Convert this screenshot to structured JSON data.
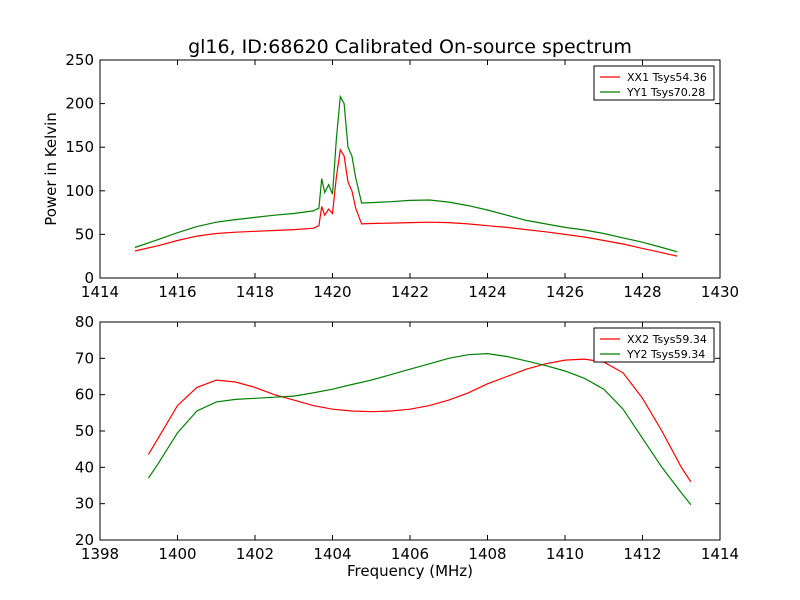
{
  "title": "gl16, ID:68620 Calibrated On-source spectrum",
  "chart_data": [
    {
      "type": "line",
      "title": "",
      "xlabel": "",
      "ylabel": "Power in Kelvin",
      "xlim": [
        1414,
        1430
      ],
      "ylim": [
        0,
        250
      ],
      "xticks": [
        "1414",
        "1416",
        "1418",
        "1420",
        "1422",
        "1424",
        "1426",
        "1428",
        "1430"
      ],
      "yticks": [
        "0",
        "50",
        "100",
        "150",
        "200",
        "250"
      ],
      "grid": false,
      "legend_position": "top-right",
      "series": [
        {
          "name": "XX1 Tsys54.36",
          "color": "#ff0000",
          "x": [
            1414.9,
            1415.5,
            1416.0,
            1416.5,
            1417.0,
            1417.5,
            1418.0,
            1418.5,
            1419.0,
            1419.5,
            1419.65,
            1419.72,
            1419.8,
            1419.9,
            1420.0,
            1420.1,
            1420.2,
            1420.3,
            1420.4,
            1420.5,
            1420.6,
            1420.75,
            1421.0,
            1421.5,
            1422.0,
            1422.5,
            1423.0,
            1423.5,
            1424.0,
            1424.5,
            1425.0,
            1425.5,
            1426.0,
            1426.5,
            1427.0,
            1427.5,
            1428.0,
            1428.5,
            1428.9
          ],
          "values": [
            31,
            37,
            43,
            48,
            51,
            52.5,
            53.5,
            54.5,
            55.5,
            57,
            60,
            82,
            72,
            79,
            74,
            116,
            147,
            140,
            110,
            100,
            80,
            62,
            62.5,
            63,
            63.5,
            64,
            63.5,
            62,
            60,
            58,
            55.5,
            53,
            50,
            47,
            43,
            39,
            34,
            29,
            25
          ]
        },
        {
          "name": "YY1 Tsys70.28",
          "color": "#008000",
          "x": [
            1414.9,
            1415.5,
            1416.0,
            1416.5,
            1417.0,
            1417.5,
            1418.0,
            1418.5,
            1419.0,
            1419.5,
            1419.65,
            1419.72,
            1419.8,
            1419.9,
            1420.0,
            1420.1,
            1420.2,
            1420.3,
            1420.4,
            1420.5,
            1420.6,
            1420.75,
            1421.0,
            1421.5,
            1422.0,
            1422.5,
            1423.0,
            1423.5,
            1424.0,
            1424.5,
            1425.0,
            1425.5,
            1426.0,
            1426.5,
            1427.0,
            1427.5,
            1428.0,
            1428.5,
            1428.9
          ],
          "values": [
            35,
            44,
            52,
            59,
            64,
            67,
            69.5,
            72,
            74,
            77,
            80,
            114,
            98,
            107,
            96,
            160,
            208,
            200,
            150,
            140,
            115,
            86,
            86.5,
            87.5,
            89,
            89.5,
            87,
            83,
            78,
            72,
            66,
            62,
            58,
            55,
            51,
            46,
            41,
            35,
            30
          ]
        }
      ]
    },
    {
      "type": "line",
      "title": "",
      "xlabel": "Frequency (MHz)",
      "ylabel": "",
      "xlim": [
        1398,
        1414
      ],
      "ylim": [
        20,
        80
      ],
      "xticks": [
        "1398",
        "1400",
        "1402",
        "1404",
        "1406",
        "1408",
        "1410",
        "1412",
        "1414"
      ],
      "yticks": [
        "20",
        "30",
        "40",
        "50",
        "60",
        "70",
        "80"
      ],
      "grid": false,
      "legend_position": "top-right",
      "series": [
        {
          "name": "XX2 Tsys59.34",
          "color": "#ff0000",
          "x": [
            1399.25,
            1399.5,
            1400.0,
            1400.5,
            1401.0,
            1401.5,
            1402.0,
            1402.5,
            1403.0,
            1403.5,
            1404.0,
            1404.5,
            1405.0,
            1405.5,
            1406.0,
            1406.5,
            1407.0,
            1407.5,
            1408.0,
            1408.5,
            1409.0,
            1409.5,
            1410.0,
            1410.5,
            1411.0,
            1411.5,
            1412.0,
            1412.5,
            1413.0,
            1413.25
          ],
          "values": [
            43.5,
            48,
            57,
            62,
            64,
            63.5,
            62,
            60,
            58.5,
            57,
            56,
            55.5,
            55.3,
            55.5,
            56,
            57,
            58.5,
            60.5,
            63,
            65,
            67,
            68.5,
            69.5,
            69.8,
            69,
            66,
            59,
            50,
            40,
            36
          ]
        },
        {
          "name": "YY2 Tsys59.34",
          "color": "#008000",
          "x": [
            1399.25,
            1399.5,
            1400.0,
            1400.5,
            1401.0,
            1401.5,
            1402.0,
            1402.5,
            1403.0,
            1403.5,
            1404.0,
            1404.5,
            1405.0,
            1405.5,
            1406.0,
            1406.5,
            1407.0,
            1407.5,
            1408.0,
            1408.5,
            1409.0,
            1409.5,
            1410.0,
            1410.5,
            1411.0,
            1411.5,
            1412.0,
            1412.5,
            1413.0,
            1413.25
          ],
          "values": [
            37,
            41,
            49.5,
            55.5,
            58,
            58.7,
            59,
            59.3,
            59.6,
            60.5,
            61.5,
            62.8,
            64,
            65.5,
            67,
            68.5,
            70,
            71,
            71.3,
            70.5,
            69.3,
            68,
            66.5,
            64.5,
            61.5,
            56,
            48,
            40,
            33,
            29.7
          ]
        }
      ]
    }
  ]
}
